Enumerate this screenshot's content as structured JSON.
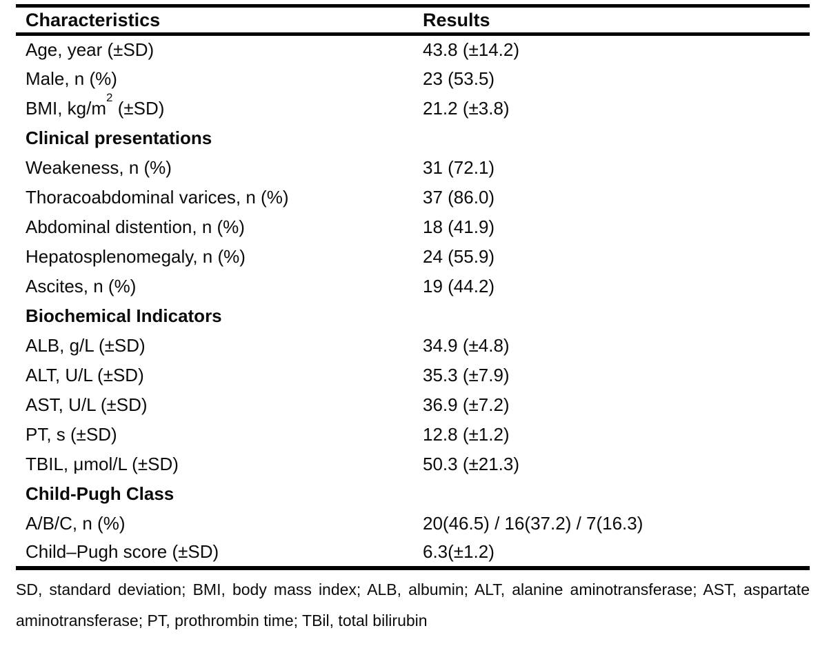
{
  "table": {
    "columns": [
      {
        "label": "Characteristics"
      },
      {
        "label": "Results"
      }
    ],
    "rows": [
      {
        "label": "Age, year (±SD)",
        "value": "43.8 (±14.2)"
      },
      {
        "label": "Male, n (%)",
        "value": "23 (53.5)"
      },
      {
        "label_pre": "BMI, kg/m",
        "label_sup": "2",
        "label_post": " (±SD)",
        "value": "21.2 (±3.8)"
      },
      {
        "label": "Clinical presentations",
        "value": "",
        "section": true
      },
      {
        "label": "Weakeness, n (%)",
        "value": "31 (72.1)"
      },
      {
        "label": "Thoracoabdominal varices, n (%)",
        "value": "37 (86.0)"
      },
      {
        "label": "Abdominal distention, n (%)",
        "value": "18 (41.9)"
      },
      {
        "label": "Hepatosplenomegaly, n (%)",
        "value": "24 (55.9)"
      },
      {
        "label": "Ascites, n (%)",
        "value": "19 (44.2)"
      },
      {
        "label": "Biochemical Indicators",
        "value": "",
        "section": true
      },
      {
        "label": "ALB, g/L (±SD)",
        "value": "34.9 (±4.8)"
      },
      {
        "label": "ALT, U/L (±SD)",
        "value": "35.3 (±7.9)"
      },
      {
        "label": "AST, U/L (±SD)",
        "value": "36.9 (±7.2)"
      },
      {
        "label": "PT, s (±SD)",
        "value": "12.8 (±1.2)"
      },
      {
        "label": "TBIL, μmol/L (±SD)",
        "value": "50.3 (±21.3)"
      },
      {
        "label": "Child-Pugh Class",
        "value": "",
        "section": true
      },
      {
        "label": "A/B/C, n (%)",
        "value": "20(46.5) / 16(37.2) / 7(16.3)"
      },
      {
        "label": "Child–Pugh score (±SD)",
        "value": "6.3(±1.2)"
      }
    ],
    "footnote": "SD, standard deviation; BMI, body mass index; ALB, albumin; ALT, alanine aminotransferase; AST, aspartate aminotransferase; PT, prothrombin time; TBil, total bilirubin"
  },
  "colors": {
    "text": "#0b0b0b",
    "rule": "#000000",
    "background": "#ffffff"
  },
  "chart_data": {
    "type": "table",
    "columns": [
      "Characteristics",
      "Results"
    ],
    "rows": [
      [
        "Age, year (±SD)",
        "43.8 (±14.2)"
      ],
      [
        "Male, n (%)",
        "23 (53.5)"
      ],
      [
        "BMI, kg/m² (±SD)",
        "21.2 (±3.8)"
      ],
      [
        "Clinical presentations",
        ""
      ],
      [
        "Weakeness, n (%)",
        "31 (72.1)"
      ],
      [
        "Thoracoabdominal varices, n (%)",
        "37 (86.0)"
      ],
      [
        "Abdominal distention, n (%)",
        "18 (41.9)"
      ],
      [
        "Hepatosplenomegaly, n (%)",
        "24 (55.9)"
      ],
      [
        "Ascites, n (%)",
        "19 (44.2)"
      ],
      [
        "Biochemical Indicators",
        ""
      ],
      [
        "ALB, g/L (±SD)",
        "34.9 (±4.8)"
      ],
      [
        "ALT, U/L (±SD)",
        "35.3 (±7.9)"
      ],
      [
        "AST, U/L (±SD)",
        "36.9 (±7.2)"
      ],
      [
        "PT, s (±SD)",
        "12.8 (±1.2)"
      ],
      [
        "TBIL, μmol/L (±SD)",
        "50.3 (±21.3)"
      ],
      [
        "Child-Pugh Class",
        ""
      ],
      [
        "A/B/C, n (%)",
        "20(46.5) / 16(37.2) / 7(16.3)"
      ],
      [
        "Child–Pugh score (±SD)",
        "6.3(±1.2)"
      ]
    ]
  }
}
